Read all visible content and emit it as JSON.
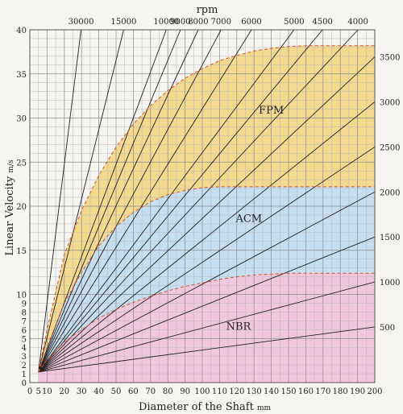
{
  "chart_data": {
    "type": "line",
    "title": "",
    "xlabel": "Diameter of the Shaft",
    "xlabel_unit": "mm",
    "ylabel": "Linear Velocity",
    "ylabel_unit": "m/s",
    "top_axis_label": "rpm",
    "xlim": [
      0,
      200
    ],
    "ylim": [
      0,
      40
    ],
    "grid": true,
    "x_ticks": [
      0,
      5,
      10,
      20,
      30,
      40,
      50,
      60,
      70,
      80,
      90,
      100,
      110,
      120,
      130,
      140,
      150,
      160,
      170,
      180,
      190,
      200
    ],
    "y_ticks": [
      0,
      1,
      2,
      3,
      4,
      5,
      6,
      7,
      8,
      9,
      10,
      15,
      20,
      25,
      30,
      35,
      40
    ],
    "rpm_lines": [
      30000,
      15000,
      10000,
      9000,
      8000,
      7000,
      6000,
      5000,
      4500,
      4000,
      3500,
      3000,
      2500,
      2000,
      1500,
      1000,
      500
    ],
    "rpm_labels_top": [
      30000,
      15000,
      10000,
      9000,
      8000,
      7000,
      6000,
      5000,
      4500,
      4000
    ],
    "rpm_labels_right": [
      3500,
      3000,
      2500,
      2000,
      1500,
      1000,
      500
    ],
    "regions": [
      {
        "name": "FPM",
        "color": "#f5d98f",
        "boundary_color": "#d9532b",
        "x": [
          5,
          10,
          20,
          30,
          40,
          50,
          60,
          70,
          80,
          90,
          100,
          110,
          120,
          130,
          140,
          150,
          160,
          170,
          180,
          190,
          200
        ],
        "y": [
          1.2,
          6,
          14.5,
          19.5,
          23.5,
          26.7,
          29.3,
          31.4,
          33.1,
          34.5,
          35.6,
          36.5,
          37.1,
          37.6,
          37.9,
          38.1,
          38.2,
          38.2,
          38.2,
          38.2,
          38.2
        ]
      },
      {
        "name": "ACM",
        "color": "#c6dff0",
        "boundary_color": "#d9532b",
        "x": [
          5,
          10,
          20,
          30,
          40,
          50,
          60,
          70,
          80,
          90,
          100,
          110,
          120,
          130,
          140,
          150,
          160,
          170,
          180,
          190,
          200
        ],
        "y": [
          1.2,
          4,
          9,
          12.5,
          15.5,
          17.7,
          19.3,
          20.5,
          21.3,
          21.8,
          22.1,
          22.2,
          22.2,
          22.2,
          22.2,
          22.2,
          22.2,
          22.2,
          22.2,
          22.2,
          22.2
        ]
      },
      {
        "name": "NBR",
        "color": "#f2c6dc",
        "boundary_color": "#d9532b",
        "x": [
          5,
          10,
          20,
          30,
          40,
          50,
          60,
          70,
          80,
          90,
          100,
          110,
          120,
          130,
          140,
          150,
          160,
          170,
          180,
          190,
          200
        ],
        "y": [
          1.2,
          2.6,
          4.6,
          6.0,
          7.3,
          8.3,
          9.1,
          9.8,
          10.4,
          10.9,
          11.3,
          11.7,
          12.0,
          12.2,
          12.3,
          12.4,
          12.4,
          12.4,
          12.4,
          12.4,
          12.4
        ]
      }
    ]
  }
}
